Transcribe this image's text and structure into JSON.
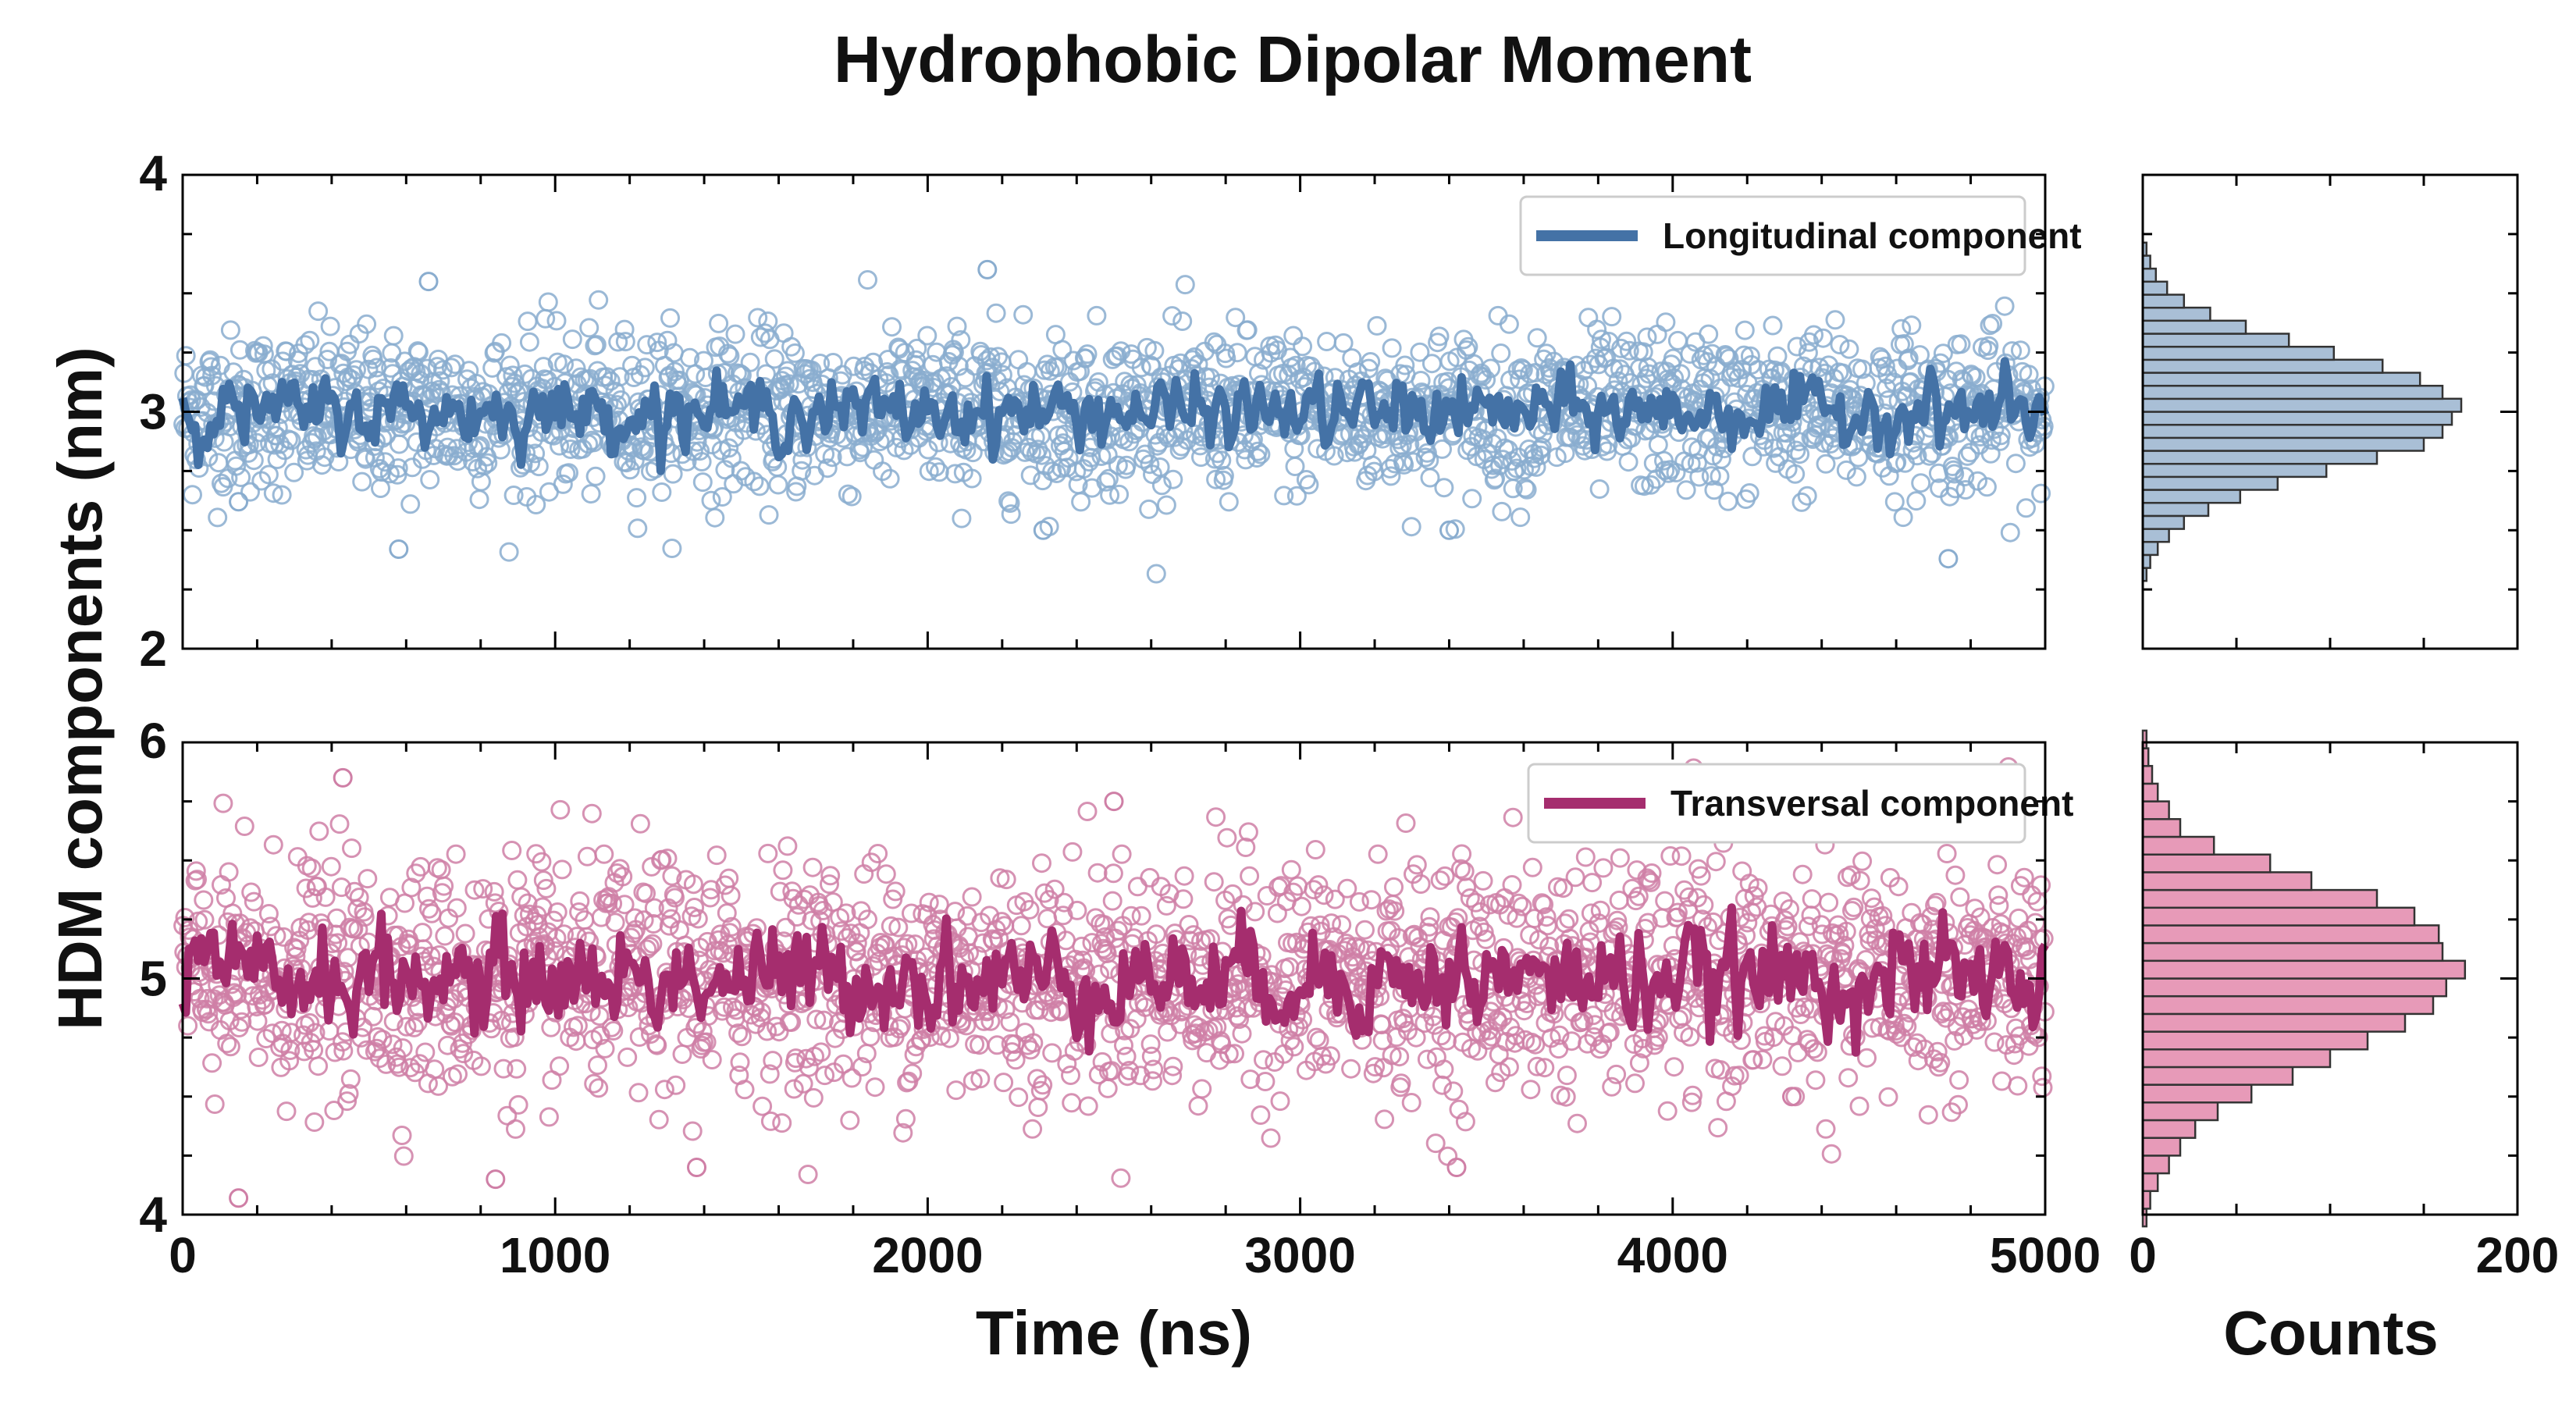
{
  "chart_data": {
    "type": "scatter",
    "title": "Hydrophobic Dipolar Moment",
    "ylabel": "HDM components (nm)",
    "xlabel": "Time (ns)",
    "hist_xlabel": "Counts",
    "time_xlim": [
      0,
      5000
    ],
    "time_xticks": [
      "0",
      "1000",
      "2000",
      "3000",
      "4000",
      "5000"
    ],
    "hist_xlim": [
      0,
      200
    ],
    "hist_xticks": [
      "0",
      "200"
    ],
    "grid": false,
    "legend_position": "top-right",
    "panels": [
      {
        "name": "Longitudinal component",
        "color": "#4472a6",
        "scatter_color": "#8aadcf",
        "hist_fill": "#a9bfd6",
        "ylim": [
          2,
          4
        ],
        "yticks": [
          "2",
          "3",
          "4"
        ],
        "mean": 3.0,
        "std": 0.17,
        "running_std": 0.065,
        "outliers": [
          [
            150,
            2.62
          ],
          [
            580,
            2.42
          ],
          [
            2160,
            3.6
          ],
          [
            2310,
            2.5
          ],
          [
            3400,
            2.5
          ],
          [
            4740,
            2.38
          ],
          [
            660,
            3.55
          ]
        ],
        "hist_counts": [
          2,
          4,
          8,
          14,
          22,
          35,
          52,
          72,
          98,
          125,
          150,
          160,
          165,
          170,
          160,
          148,
          128,
          102,
          78,
          55,
          36,
          22,
          13,
          7,
          4,
          2
        ]
      },
      {
        "name": "Transversal component",
        "color": "#a52d6e",
        "scatter_color": "#cf7fa6",
        "hist_fill": "#e79ab8",
        "ylim": [
          4,
          6
        ],
        "yticks": [
          "4",
          "5",
          "6"
        ],
        "mean": 5.0,
        "std": 0.25,
        "running_std": 0.1,
        "outliers": [
          [
            430,
            5.85
          ],
          [
            150,
            4.07
          ],
          [
            1380,
            4.2
          ],
          [
            2500,
            5.75
          ],
          [
            3420,
            4.2
          ],
          [
            840,
            4.15
          ],
          [
            4320,
            4.5
          ]
        ],
        "hist_counts": [
          2,
          4,
          8,
          14,
          20,
          28,
          40,
          58,
          80,
          100,
          120,
          140,
          155,
          162,
          172,
          160,
          158,
          145,
          125,
          90,
          68,
          38,
          20,
          14,
          8,
          5,
          3,
          2
        ]
      }
    ]
  }
}
